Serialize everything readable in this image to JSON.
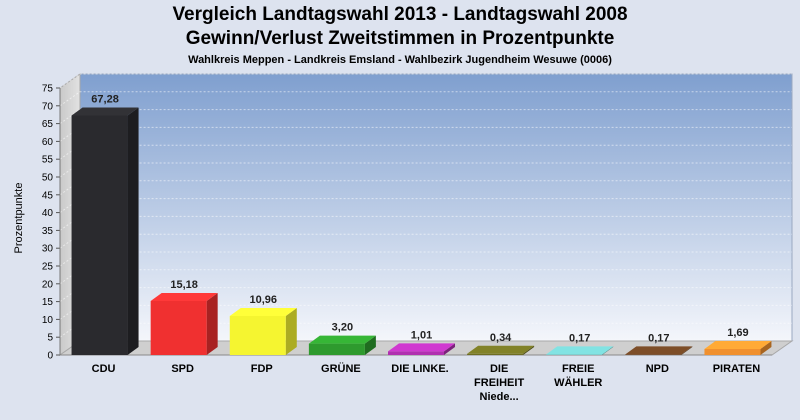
{
  "chart_data": {
    "type": "bar",
    "title": "Vergleich Landtagswahl 2013 - Landtagswahl 2008",
    "title_line2": "Gewinn/Verlust Zweitstimmen in Prozentpunkte",
    "subtitle": "Wahlkreis Meppen - Landkreis Emsland - Wahlbezirk Jugendheim Wesuwe (0006)",
    "xlabel": "",
    "ylabel": "Prozentpunkte",
    "ylim": [
      0,
      75
    ],
    "yticks": [
      0,
      5,
      10,
      15,
      20,
      25,
      30,
      35,
      40,
      45,
      50,
      55,
      60,
      65,
      70,
      75
    ],
    "grid": true,
    "categories": [
      [
        "CDU"
      ],
      [
        "SPD"
      ],
      [
        "FDP"
      ],
      [
        "GRÜNE"
      ],
      [
        "DIE LINKE."
      ],
      [
        "DIE",
        "FREIHEIT",
        "Niede..."
      ],
      [
        "FREIE",
        "WÄHLER"
      ],
      [
        "NPD"
      ],
      [
        "PIRATEN"
      ]
    ],
    "values": [
      67.28,
      15.18,
      10.96,
      3.2,
      1.01,
      0.34,
      0.17,
      0.17,
      1.69
    ],
    "value_labels": [
      "67,28",
      "15,18",
      "10,96",
      "3,20",
      "1,01",
      "0,34",
      "0,17",
      "0,17",
      "1,69"
    ],
    "colors": [
      "#2a2a2e",
      "#f03030",
      "#f5f530",
      "#2e9a2e",
      "#b030b0",
      "#6e6e22",
      "#6ec0c0",
      "#6a4222",
      "#f0902e"
    ]
  }
}
